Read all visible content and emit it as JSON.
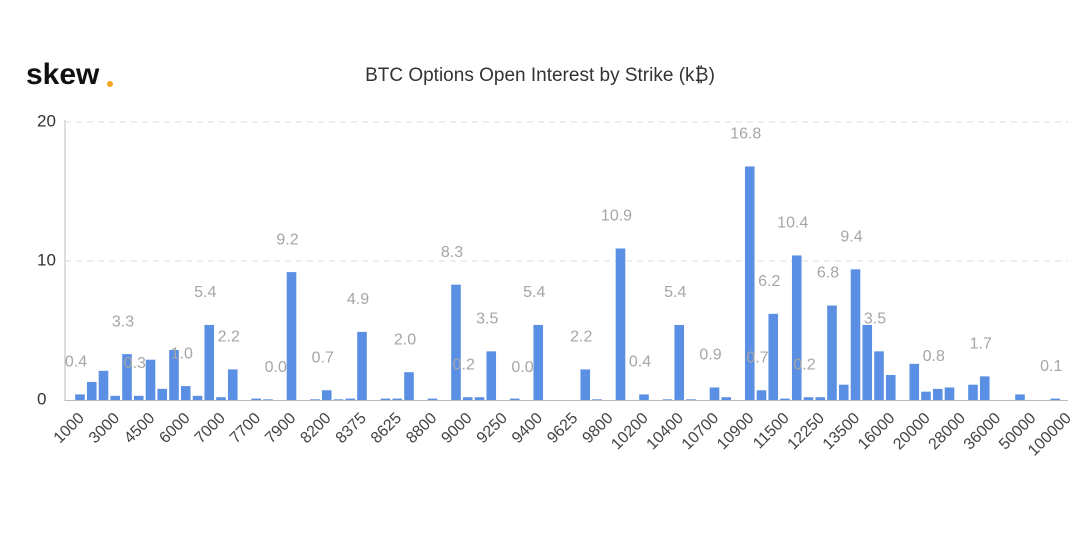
{
  "logo": "skew",
  "chart_data": {
    "type": "bar",
    "title": "BTC Options Open Interest by Strike (k₿)",
    "categories": [
      "1000",
      null,
      null,
      "3000",
      null,
      null,
      "4500",
      null,
      null,
      "6000",
      null,
      null,
      "7000",
      null,
      null,
      "7700",
      null,
      null,
      "7900",
      null,
      null,
      "8200",
      null,
      null,
      "8375",
      null,
      null,
      "8625",
      null,
      null,
      "8800",
      null,
      null,
      "9000",
      null,
      null,
      "9250",
      null,
      null,
      "9400",
      null,
      null,
      "9625",
      null,
      null,
      "9800",
      null,
      null,
      "10200",
      null,
      null,
      "10400",
      null,
      null,
      "10700",
      null,
      null,
      "10900",
      null,
      null,
      "11500",
      null,
      null,
      "12250",
      null,
      null,
      "13500",
      null,
      null,
      "16000",
      null,
      null,
      "20000",
      null,
      null,
      "28000",
      null,
      null,
      "36000",
      null,
      null,
      "50000",
      null,
      null,
      "100000"
    ],
    "values": [
      0.4,
      1.3,
      2.1,
      0.3,
      3.3,
      0.3,
      2.9,
      0.8,
      3.6,
      1,
      0.3,
      5.4,
      0.2,
      2.2,
      0,
      0.1,
      0.05,
      0,
      9.2,
      0,
      0.05,
      0.7,
      0.05,
      0.1,
      4.9,
      0,
      0.1,
      0.1,
      2,
      0,
      0.1,
      0,
      8.3,
      0.2,
      0.2,
      3.5,
      0,
      0.1,
      0,
      5.4,
      0,
      0,
      0,
      2.2,
      0.05,
      0,
      10.9,
      0,
      0.4,
      0,
      0.05,
      5.4,
      0.05,
      0,
      0.9,
      0.2,
      0,
      16.8,
      0.7,
      6.2,
      0.1,
      10.4,
      0.2,
      0.2,
      6.8,
      1.1,
      9.4,
      5.4,
      3.5,
      1.8,
      0,
      2.6,
      0.6,
      0.8,
      0.9,
      0,
      1.1,
      1.7,
      0,
      0,
      0.4,
      0,
      0,
      0.1,
      0
    ],
    "value_labels": [
      "0.4",
      null,
      null,
      null,
      "3.3",
      "0.3",
      null,
      null,
      null,
      "1.0",
      null,
      "5.4",
      null,
      "2.2",
      null,
      null,
      null,
      "0.0",
      "9.2",
      null,
      null,
      "0.7",
      null,
      null,
      "4.9",
      null,
      null,
      null,
      "2.0",
      null,
      null,
      null,
      "8.3",
      "0.2",
      null,
      "3.5",
      null,
      null,
      "0.0",
      "5.4",
      null,
      null,
      null,
      "2.2",
      null,
      null,
      "10.9",
      null,
      "0.4",
      null,
      null,
      "5.4",
      null,
      null,
      "0.9",
      null,
      null,
      "16.8",
      "0.7",
      "6.2",
      null,
      "10.4",
      "0.2",
      null,
      "6.8",
      null,
      "9.4",
      null,
      "3.5",
      null,
      null,
      null,
      null,
      "0.8",
      null,
      null,
      null,
      "1.7",
      null,
      null,
      null,
      null,
      null,
      "0.1",
      null
    ],
    "color": "#5a8fe3",
    "ylim": [
      0,
      20
    ],
    "yticks": [
      0,
      10,
      20
    ],
    "grid": true
  }
}
